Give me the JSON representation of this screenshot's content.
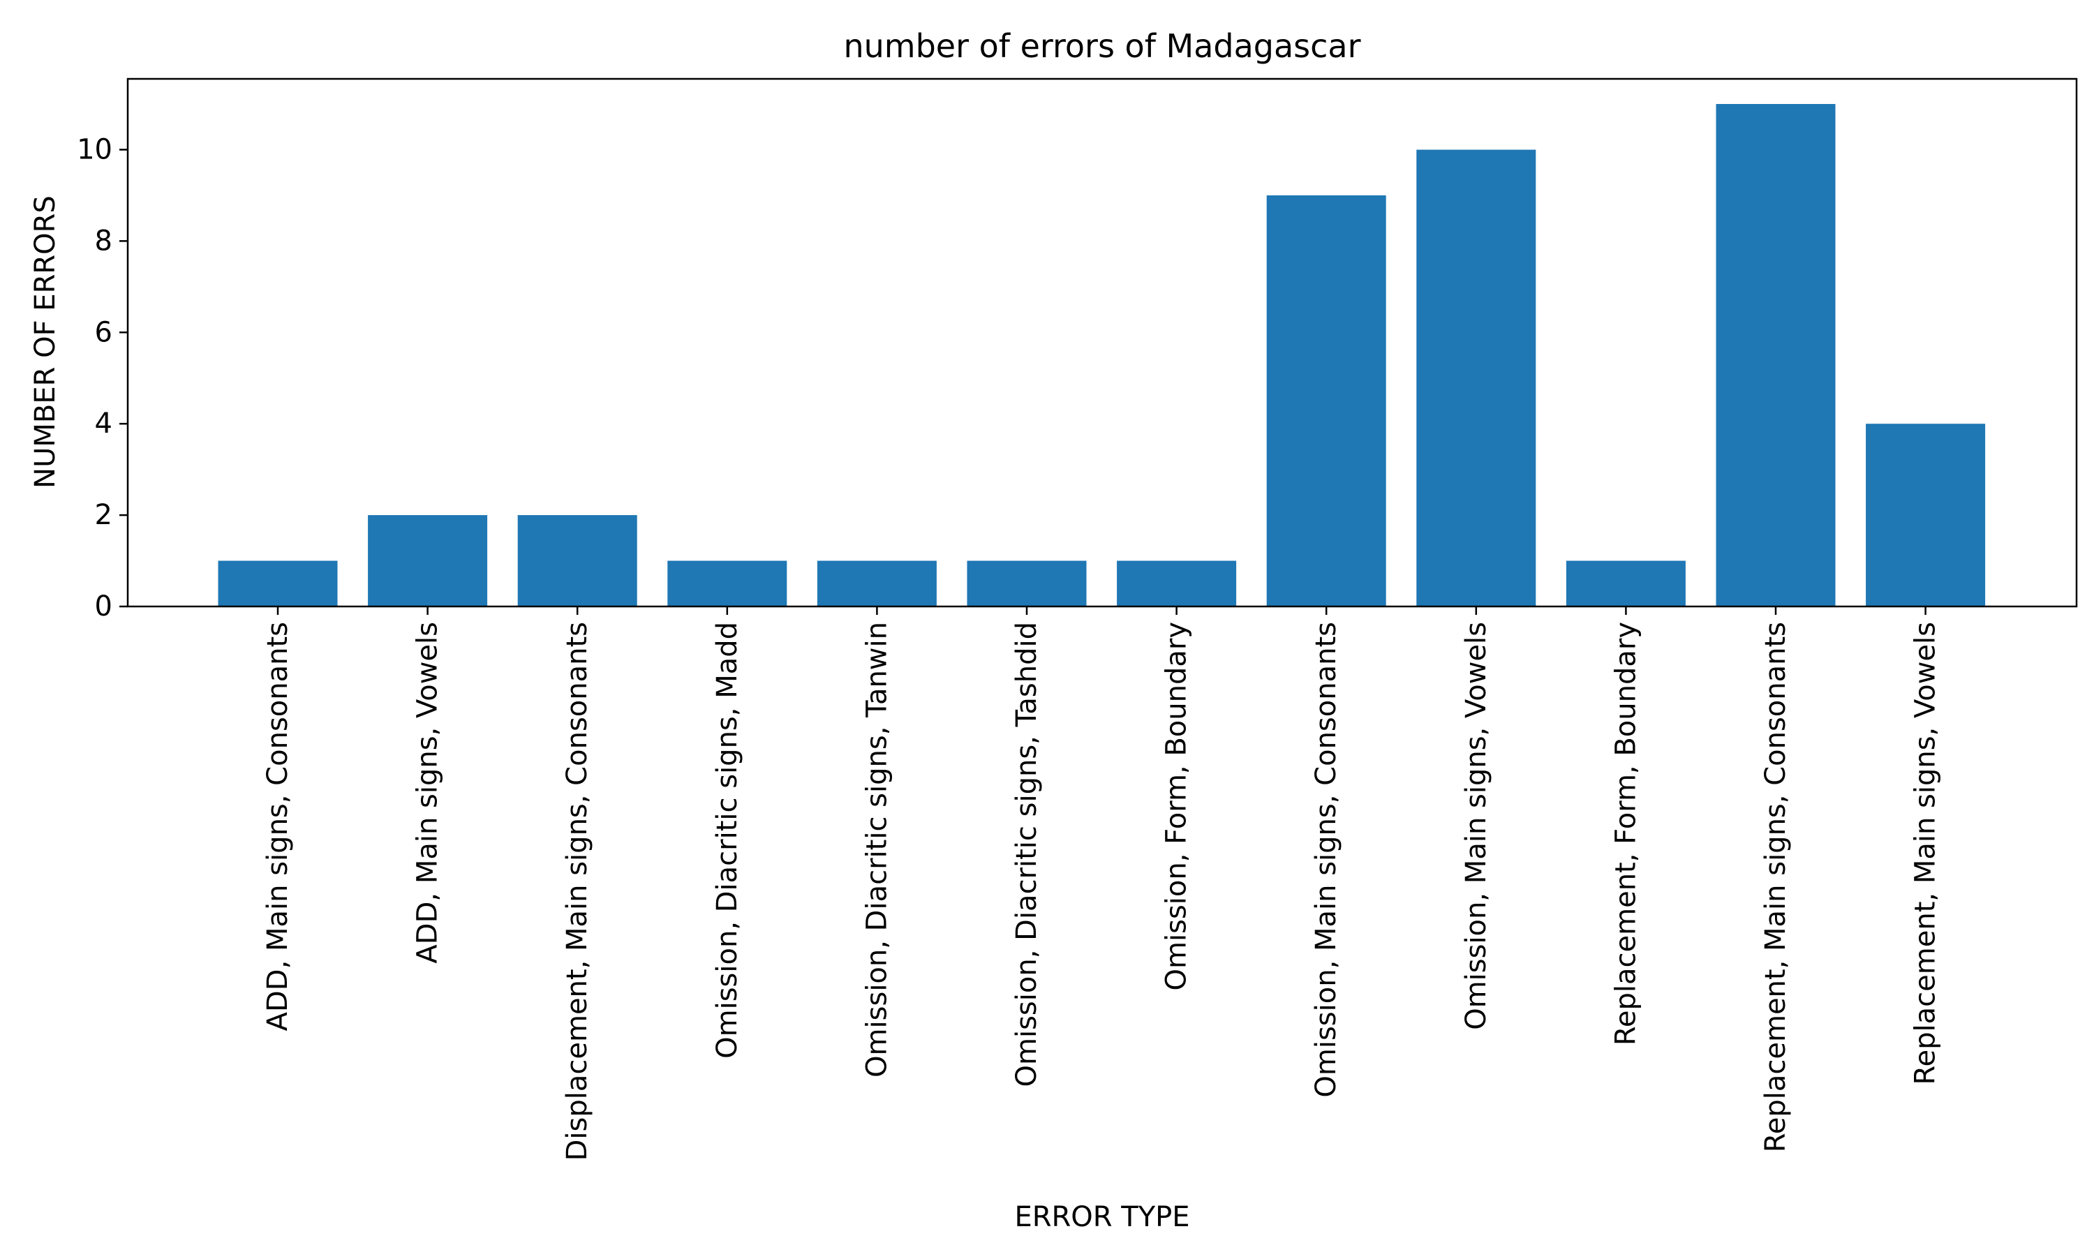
{
  "chart_data": {
    "type": "bar",
    "title": "number of errors of Madagascar",
    "xlabel": "ERROR TYPE",
    "ylabel": "NUMBER OF ERRORS",
    "categories": [
      "ADD, Main signs, Consonants",
      "ADD, Main signs, Vowels",
      "Displacement, Main signs, Consonants",
      "Omission, Diacritic signs, Madd",
      "Omission, Diacritic signs, Tanwin",
      "Omission, Diacritic signs, Tashdid",
      "Omission, Form, Boundary",
      "Omission, Main signs, Consonants",
      "Omission, Main signs, Vowels",
      "Replacement, Form, Boundary",
      "Replacement, Main signs, Consonants",
      "Replacement, Main signs, Vowels"
    ],
    "values": [
      1,
      2,
      2,
      1,
      1,
      1,
      1,
      9,
      10,
      1,
      11,
      4
    ],
    "yticks": [
      0,
      2,
      4,
      6,
      8,
      10
    ],
    "ylim": [
      0,
      11.55
    ],
    "grid": false,
    "bar_color": "#1f77b4"
  }
}
